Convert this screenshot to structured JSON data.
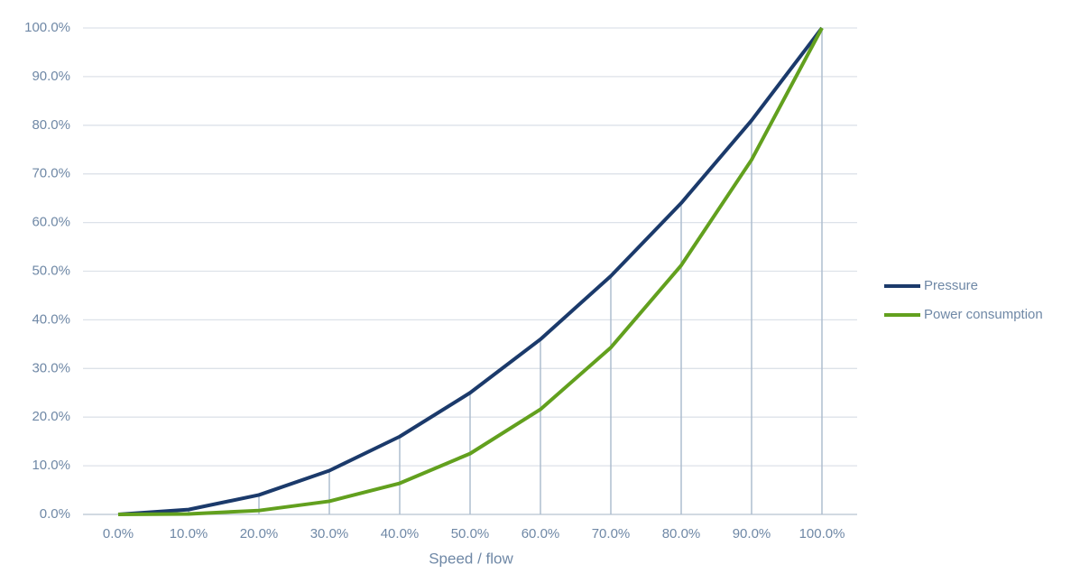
{
  "chart_data": {
    "type": "line",
    "x_label": "Speed / flow",
    "categories": [
      "0.0%",
      "10.0%",
      "20.0%",
      "30.0%",
      "40.0%",
      "50.0%",
      "60.0%",
      "70.0%",
      "80.0%",
      "90.0%",
      "100.0%"
    ],
    "series": [
      {
        "name": "Pressure",
        "color": "#1b3a6b",
        "values": [
          0,
          1,
          4,
          9,
          16,
          25,
          36,
          49,
          64,
          81,
          100
        ]
      },
      {
        "name": "Power consumption",
        "color": "#62a01e",
        "values": [
          0,
          0.1,
          0.8,
          2.7,
          6.4,
          12.5,
          21.6,
          34.3,
          51.2,
          72.9,
          100
        ]
      }
    ],
    "ylim": [
      0,
      100
    ],
    "yticks": [
      {
        "value": 0,
        "label": "0.0%"
      },
      {
        "value": 10,
        "label": "10.0%"
      },
      {
        "value": 20,
        "label": "20.0%"
      },
      {
        "value": 30,
        "label": "30.0%"
      },
      {
        "value": 40,
        "label": "40.0%"
      },
      {
        "value": 50,
        "label": "50.0%"
      },
      {
        "value": 60,
        "label": "60.0%"
      },
      {
        "value": 70,
        "label": "70.0%"
      },
      {
        "value": 80,
        "label": "80.0%"
      },
      {
        "value": 90,
        "label": "90.0%"
      },
      {
        "value": 100,
        "label": "100.0%"
      }
    ],
    "grid": true,
    "drop_lines": true,
    "legend": "right"
  }
}
